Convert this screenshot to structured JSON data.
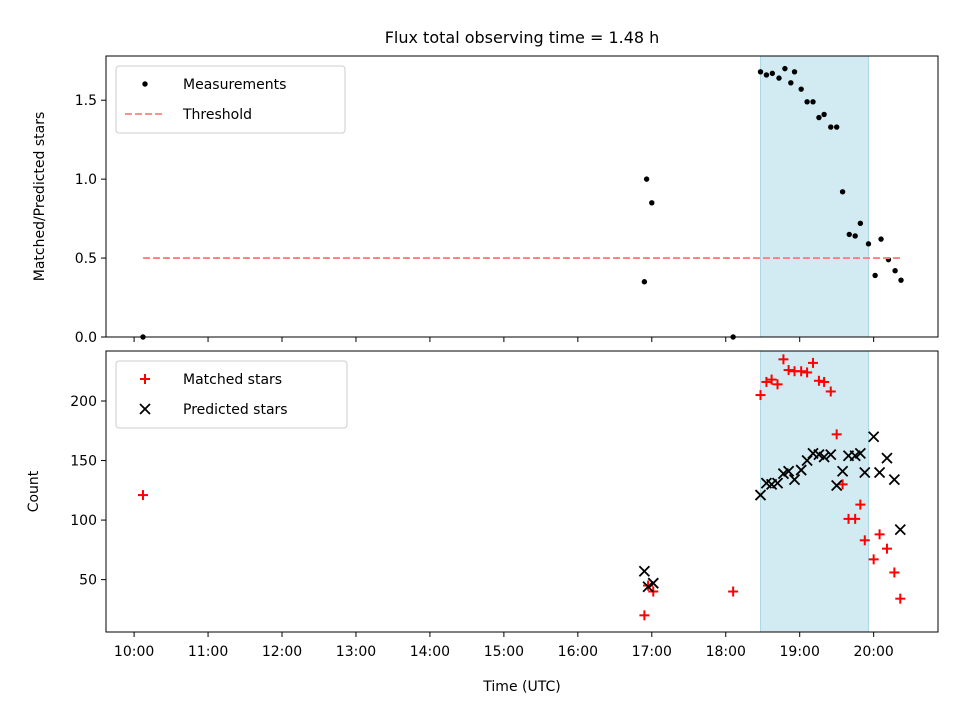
{
  "figure": {
    "title": "Flux total observing time = 1.48 h"
  },
  "chart_data": [
    {
      "type": "scatter",
      "ylabel": "Matched/Predicted stars",
      "xlabel": "",
      "ylim": [
        0.0,
        1.78
      ],
      "xlim_hours": [
        9.62,
        20.87
      ],
      "yticks": [
        0.0,
        0.5,
        1.0,
        1.5
      ],
      "ytick_labels": [
        "0.0",
        "0.5",
        "1.0",
        "1.5"
      ],
      "legend_position": "upper-left",
      "highlight_span_hours": [
        18.47,
        19.93
      ],
      "series": [
        {
          "name": "Measurements",
          "marker": "dot",
          "color": "#000000",
          "points": [
            [
              10.12,
              0.0
            ],
            [
              16.9,
              0.35
            ],
            [
              16.93,
              1.0
            ],
            [
              17.0,
              0.85
            ],
            [
              18.1,
              0.0
            ],
            [
              18.47,
              1.68
            ],
            [
              18.55,
              1.66
            ],
            [
              18.63,
              1.67
            ],
            [
              18.72,
              1.64
            ],
            [
              18.8,
              1.7
            ],
            [
              18.88,
              1.61
            ],
            [
              18.93,
              1.68
            ],
            [
              19.02,
              1.57
            ],
            [
              19.1,
              1.49
            ],
            [
              19.18,
              1.49
            ],
            [
              19.26,
              1.39
            ],
            [
              19.33,
              1.41
            ],
            [
              19.42,
              1.33
            ],
            [
              19.5,
              1.33
            ],
            [
              19.58,
              0.92
            ],
            [
              19.67,
              0.65
            ],
            [
              19.75,
              0.64
            ],
            [
              19.82,
              0.72
            ],
            [
              19.93,
              0.59
            ],
            [
              20.02,
              0.39
            ],
            [
              20.1,
              0.62
            ],
            [
              20.2,
              0.49
            ],
            [
              20.29,
              0.42
            ],
            [
              20.37,
              0.36
            ]
          ]
        },
        {
          "name": "Threshold",
          "marker": "dashed-line",
          "color": "#ff7f7f",
          "points": [
            [
              10.12,
              0.5
            ],
            [
              20.37,
              0.5
            ]
          ]
        }
      ]
    },
    {
      "type": "scatter",
      "ylabel": "Count",
      "xlabel": "Time (UTC)",
      "ylim": [
        6,
        242
      ],
      "xlim_hours": [
        9.62,
        20.87
      ],
      "yticks": [
        50,
        100,
        150,
        200
      ],
      "ytick_labels": [
        "50",
        "100",
        "150",
        "200"
      ],
      "xticks_hours": [
        10,
        11,
        12,
        13,
        14,
        15,
        16,
        17,
        18,
        19,
        20
      ],
      "xtick_labels": [
        "10:00",
        "11:00",
        "12:00",
        "13:00",
        "14:00",
        "15:00",
        "16:00",
        "17:00",
        "18:00",
        "19:00",
        "20:00"
      ],
      "legend_position": "upper-left",
      "highlight_span_hours": [
        18.47,
        19.93
      ],
      "series": [
        {
          "name": "Matched stars",
          "marker": "plus",
          "color": "#ff0000",
          "points": [
            [
              10.12,
              121
            ],
            [
              16.9,
              20
            ],
            [
              16.95,
              45
            ],
            [
              17.02,
              40
            ],
            [
              18.1,
              40
            ],
            [
              18.47,
              205
            ],
            [
              18.55,
              216
            ],
            [
              18.62,
              218
            ],
            [
              18.7,
              214
            ],
            [
              18.78,
              235
            ],
            [
              18.85,
              226
            ],
            [
              18.93,
              225
            ],
            [
              19.02,
              225
            ],
            [
              19.1,
              224
            ],
            [
              19.18,
              232
            ],
            [
              19.26,
              217
            ],
            [
              19.33,
              216
            ],
            [
              19.42,
              208
            ],
            [
              19.5,
              172
            ],
            [
              19.58,
              130
            ],
            [
              19.66,
              101
            ],
            [
              19.75,
              101
            ],
            [
              19.82,
              113
            ],
            [
              19.88,
              83
            ],
            [
              20.0,
              67
            ],
            [
              20.08,
              88
            ],
            [
              20.18,
              76
            ],
            [
              20.28,
              56
            ],
            [
              20.36,
              34
            ]
          ]
        },
        {
          "name": "Predicted stars",
          "marker": "x",
          "color": "#000000",
          "points": [
            [
              16.9,
              57
            ],
            [
              16.95,
              44
            ],
            [
              17.02,
              47
            ],
            [
              18.47,
              121
            ],
            [
              18.55,
              131
            ],
            [
              18.62,
              130
            ],
            [
              18.7,
              131
            ],
            [
              18.78,
              139
            ],
            [
              18.85,
              141
            ],
            [
              18.93,
              134
            ],
            [
              19.02,
              142
            ],
            [
              19.1,
              150
            ],
            [
              19.18,
              156
            ],
            [
              19.26,
              155
            ],
            [
              19.33,
              153
            ],
            [
              19.42,
              155
            ],
            [
              19.5,
              129
            ],
            [
              19.58,
              141
            ],
            [
              19.66,
              154
            ],
            [
              19.75,
              154
            ],
            [
              19.82,
              156
            ],
            [
              19.88,
              140
            ],
            [
              20.0,
              170
            ],
            [
              20.08,
              140
            ],
            [
              20.18,
              152
            ],
            [
              20.28,
              134
            ],
            [
              20.36,
              92
            ]
          ]
        }
      ]
    }
  ]
}
